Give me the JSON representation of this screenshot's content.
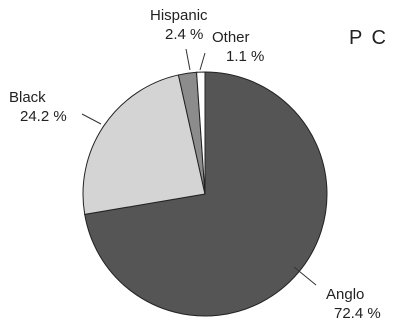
{
  "chart_data": {
    "type": "pie",
    "title": "P C",
    "slices": [
      {
        "label": "Anglo",
        "value": 72.4,
        "value_label": "72.4 %",
        "color": "#555555"
      },
      {
        "label": "Black",
        "value": 24.2,
        "value_label": "24.2 %",
        "color": "#d4d4d4"
      },
      {
        "label": "Hispanic",
        "value": 2.4,
        "value_label": "2.4 %",
        "color": "#8c8c8c"
      },
      {
        "label": "Other",
        "value": 1.1,
        "value_label": "1.1 %",
        "color": "#ffffff"
      }
    ]
  }
}
